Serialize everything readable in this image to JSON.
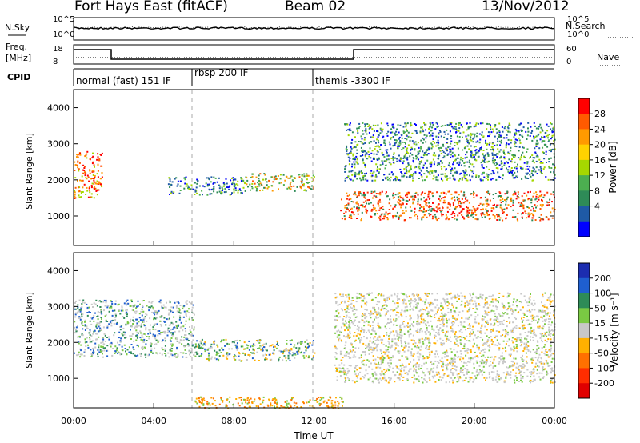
{
  "header": {
    "radar": "Fort Hays East (fitACF)",
    "beam": "Beam 02",
    "date": "13/Nov/2012"
  },
  "panels": {
    "top_left_label": "N.Sky",
    "top_right_label": "N.Search",
    "top_ticks": [
      "10^5",
      "10^0"
    ],
    "freq_label_1": "Freq.",
    "freq_label_2": "[MHz]",
    "freq_ticks": [
      "18",
      "8"
    ],
    "nave_label": "Nave",
    "nave_ticks": [
      "60",
      "0"
    ],
    "cpid_label": "CPID",
    "modes": [
      "normal (fast) 151 IF",
      "rbsp 200 IF",
      "themis -3300 IF"
    ],
    "power_ylabel": "Slant Range [km]",
    "velocity_ylabel": "Slant Range [km]",
    "range_ticks": [
      "4000",
      "3000",
      "2000",
      "1000"
    ],
    "xlabel": "Time UT",
    "time_ticks": [
      "00:00",
      "04:00",
      "08:00",
      "12:00",
      "16:00",
      "20:00",
      "00:00"
    ]
  },
  "colorbars": {
    "power": {
      "label": "Power [dB]",
      "ticks": [
        "28",
        "24",
        "20",
        "16",
        "12",
        "8",
        "4"
      ],
      "colors": [
        "#ff0000",
        "#ff5a00",
        "#ff9a00",
        "#ffd200",
        "#a6d800",
        "#4caf50",
        "#2e8b57",
        "#1f5aa6",
        "#0000ff"
      ]
    },
    "velocity": {
      "label": "Velocity [m s⁻¹]",
      "ticks": [
        "200",
        "100",
        "50",
        "15",
        "-15",
        "-50",
        "-100",
        "-200"
      ],
      "colors": [
        "#1c2db0",
        "#1f5fd0",
        "#2e8b57",
        "#7ac943",
        "#c8c8c8",
        "#ffb000",
        "#ff7000",
        "#ff2d00",
        "#e00000"
      ]
    }
  },
  "chart_data": {
    "type": "heatmap",
    "x_range_hours": [
      0,
      24
    ],
    "y_range_km": [
      180,
      4500
    ],
    "mode_changes_ut": [
      "06:00",
      "12:00"
    ],
    "power_features": [
      {
        "t0": 0.0,
        "t1": 1.4,
        "r0": 1500,
        "r1": 2800,
        "dominant": "orange/red"
      },
      {
        "t0": 4.7,
        "t1": 8.5,
        "r0": 1600,
        "r1": 2100,
        "dominant": "green/blue"
      },
      {
        "t0": 8.5,
        "t1": 12.0,
        "r0": 1700,
        "r1": 2200,
        "dominant": "orange/green"
      },
      {
        "t0": 13.3,
        "t1": 24.0,
        "r0": 900,
        "r1": 1700,
        "dominant": "red/orange"
      },
      {
        "t0": 13.5,
        "t1": 24.0,
        "r0": 2000,
        "r1": 3600,
        "dominant": "green/blue"
      }
    ],
    "velocity_features": [
      {
        "t0": 0.0,
        "t1": 6.0,
        "r0": 1600,
        "r1": 3200,
        "dominant": "grey/green"
      },
      {
        "t0": 6.0,
        "t1": 12.0,
        "r0": 1500,
        "r1": 2100,
        "dominant": "green/orange"
      },
      {
        "t0": 13.0,
        "t1": 24.0,
        "r0": 900,
        "r1": 3400,
        "dominant": "grey"
      },
      {
        "t0": 6.0,
        "t1": 13.5,
        "r0": 180,
        "r1": 500,
        "dominant": "orange"
      }
    ]
  }
}
